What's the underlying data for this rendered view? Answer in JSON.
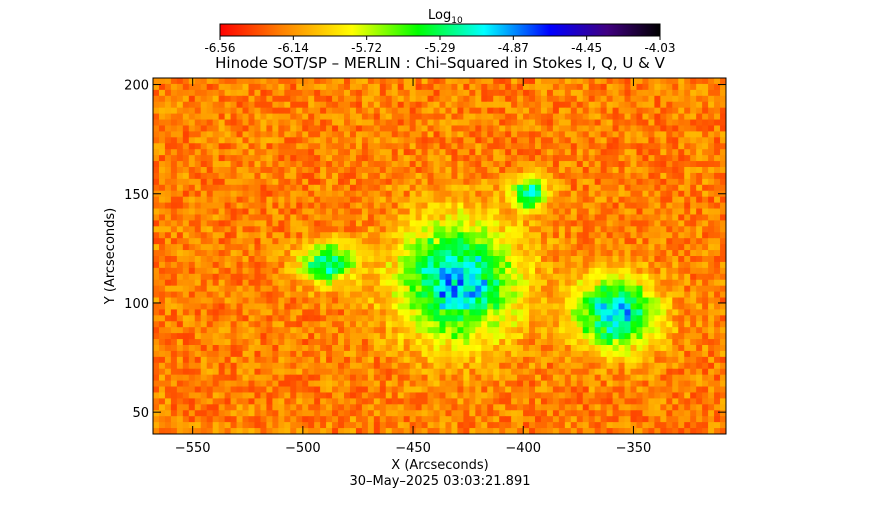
{
  "colorbar": {
    "label_main": "Log",
    "label_sub": "10",
    "ticks": [
      "-6.56",
      "-6.14",
      "-5.72",
      "-5.29",
      "-4.87",
      "-4.45",
      "-4.03"
    ],
    "range": [
      -6.56,
      -4.03
    ],
    "colormap": [
      "#ff0000",
      "#ff8000",
      "#ffff00",
      "#00ff00",
      "#00ffff",
      "#0000ff",
      "#400080",
      "#000000"
    ]
  },
  "chart_data": {
    "type": "heatmap",
    "title": "Hinode SOT/SP – MERLIN : Chi–Squared in Stokes I, Q, U & V",
    "xlabel": "X (Arcseconds)",
    "ylabel": "Y (Arcseconds)",
    "xlim": [
      -568,
      -308
    ],
    "ylim": [
      40,
      203
    ],
    "xticks": [
      -550,
      -500,
      -450,
      -400,
      -350
    ],
    "yticks": [
      50,
      100,
      150,
      200
    ],
    "xtick_labels": [
      "−550",
      "−500",
      "−450",
      "−400",
      "−350"
    ],
    "ytick_labels": [
      "50",
      "100",
      "150",
      "200"
    ],
    "value_label": "Log10 Chi-Squared",
    "background_level": -6.2,
    "features": [
      {
        "name": "small patch",
        "x": -489,
        "y": 118,
        "peak": -4.95
      },
      {
        "name": "central region",
        "x": -430,
        "y": 110,
        "peak": -4.7
      },
      {
        "name": "northern spot",
        "x": -397,
        "y": 150,
        "peak": -4.9
      },
      {
        "name": "eastern region",
        "x": -358,
        "y": 95,
        "peak": -4.75
      }
    ]
  },
  "footer": {
    "timestamp": "30–May–2025 03:03:21.891"
  }
}
